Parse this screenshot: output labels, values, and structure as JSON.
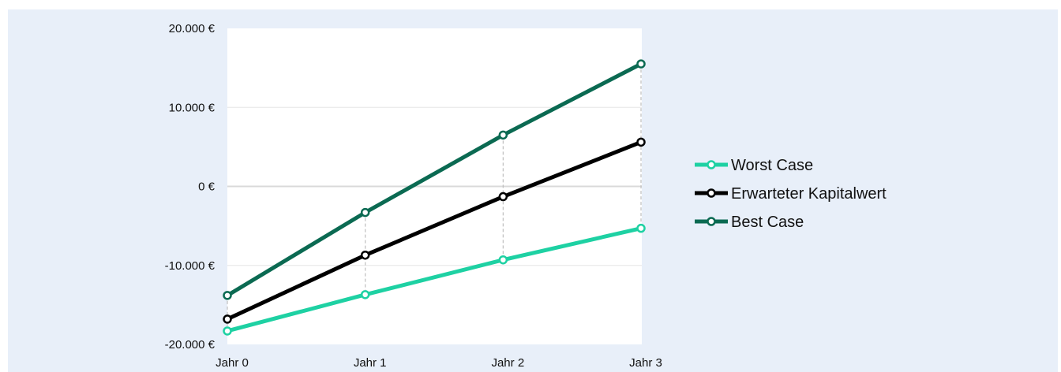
{
  "chart_data": {
    "type": "line",
    "categories": [
      "Jahr 0",
      "Jahr 1",
      "Jahr 2",
      "Jahr 3"
    ],
    "yticks": [
      "20.000 €",
      "10.000 €",
      "0 €",
      "-10.000 €",
      "-20.000 €"
    ],
    "ylim": [
      -20000,
      20000
    ],
    "ytick_values": [
      20000,
      10000,
      0,
      -10000,
      -20000
    ],
    "grid": true,
    "legend_position": "right",
    "series": [
      {
        "name": "Worst Case",
        "color": "#1ed1a3",
        "values": [
          -18300,
          -13700,
          -9300,
          -5300
        ]
      },
      {
        "name": "Erwarteter Kapitalwert",
        "color": "#000000",
        "values": [
          -16800,
          -8700,
          -1300,
          5600
        ]
      },
      {
        "name": "Best Case",
        "color": "#0b6a52",
        "values": [
          -13800,
          -3300,
          6500,
          15500
        ]
      }
    ],
    "colors": {
      "panel_background": "#e8eff9",
      "plot_background": "#ffffff",
      "gridline": "#e6e6e6",
      "drop_line": "#bfbfbf"
    }
  }
}
